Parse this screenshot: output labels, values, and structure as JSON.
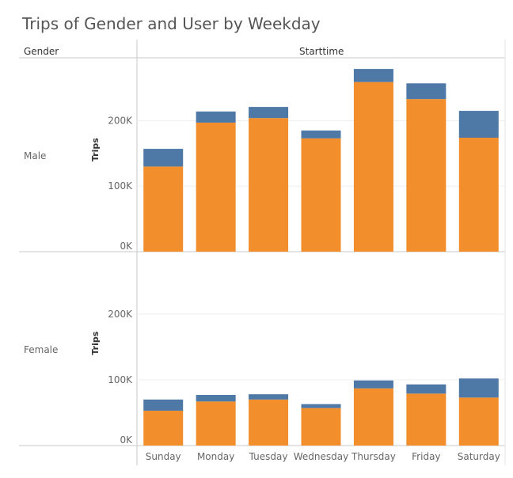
{
  "title": "Trips of Gender and User by Weekday",
  "header": {
    "row_dimension": "Gender",
    "column_dimension": "Starttime"
  },
  "colors": {
    "segment_bottom": "#f28e2b",
    "segment_top": "#4e79a7",
    "axis_line": "#c8c8c8",
    "grid_line": "#efefef",
    "tick_text": "#666666"
  },
  "chart_data": {
    "type": "bar",
    "stacked": true,
    "title": "Trips of Gender and User by Weekday",
    "categories": [
      "Sunday",
      "Monday",
      "Tuesday",
      "Wednesday",
      "Thursday",
      "Friday",
      "Saturday"
    ],
    "ylabel": "Trips",
    "ylim": [
      0,
      290000
    ],
    "yticks": [
      "0K",
      "100K",
      "200K"
    ],
    "grid": true,
    "legend": "none",
    "panels": [
      {
        "name": "Male",
        "series": [
          {
            "values": [
              130000,
              197000,
              204000,
              173000,
              259000,
              233000,
              174000
            ]
          },
          {
            "values": [
              27000,
              17000,
              17000,
              12000,
              20000,
              24000,
              41000
            ]
          }
        ]
      },
      {
        "name": "Female",
        "series": [
          {
            "values": [
              53000,
              67000,
              70000,
              57000,
              87000,
              79000,
              73000
            ]
          },
          {
            "values": [
              17000,
              10000,
              8000,
              6000,
              12000,
              14000,
              29000
            ]
          }
        ]
      }
    ]
  }
}
